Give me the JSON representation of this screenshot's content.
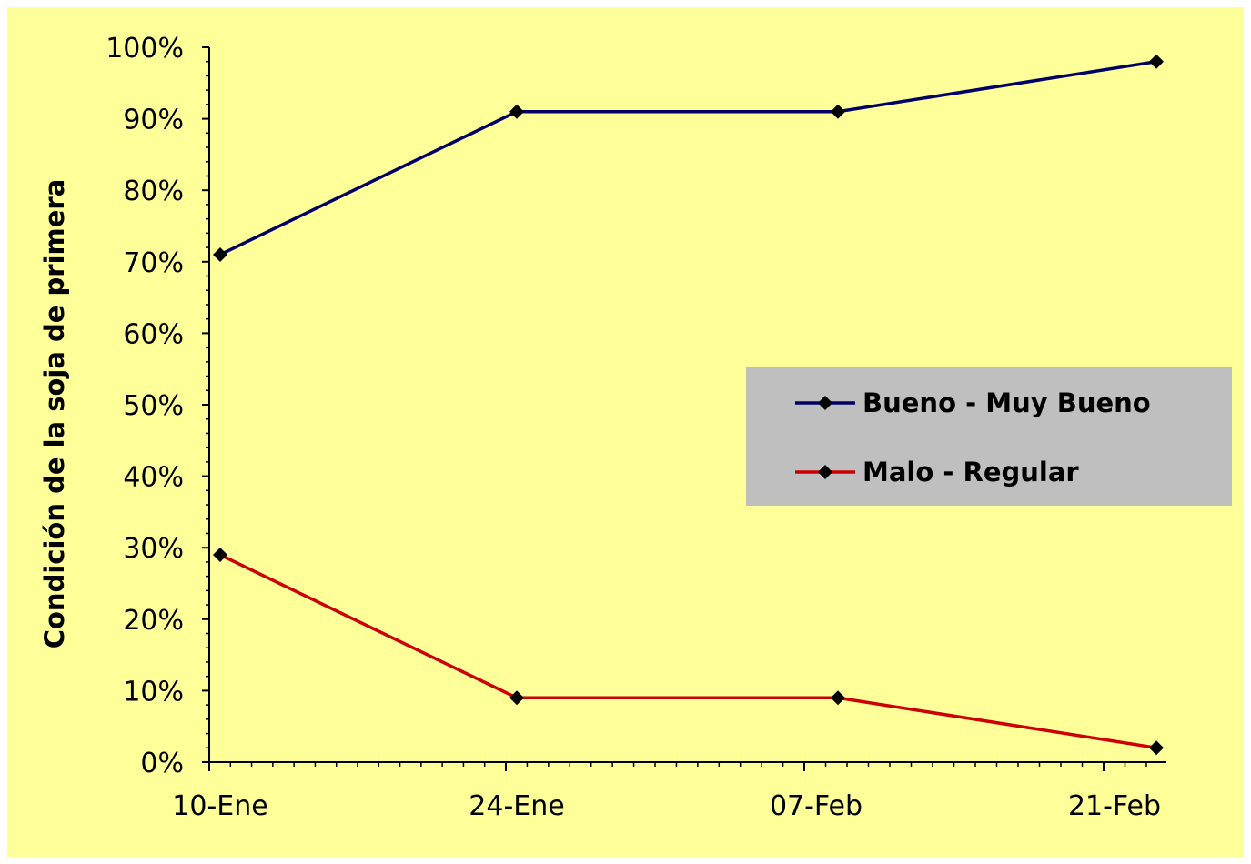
{
  "chart_data": {
    "type": "line",
    "title": "",
    "xlabel": "",
    "ylabel": "Condición de la soja de primera",
    "categories": [
      "10-Ene",
      "24-Ene",
      "07-Feb",
      "21-Feb"
    ],
    "x": [
      "10-Ene",
      "24-Ene",
      "07-Feb",
      "21-Feb"
    ],
    "x_tick_labels": [
      "10-Ene",
      "24-Ene",
      "07-Feb",
      "21-Feb"
    ],
    "y_tick_labels": [
      "0%",
      "10%",
      "20%",
      "30%",
      "40%",
      "50%",
      "60%",
      "70%",
      "80%",
      "90%",
      "100%"
    ],
    "ylim": [
      0,
      100
    ],
    "y_unit": "%",
    "grid": false,
    "legend_position": "right",
    "series": [
      {
        "name": "Bueno - Muy Bueno",
        "color": "#000066",
        "x": [
          "10-Ene",
          "24-Ene",
          "07-Feb",
          "21-Feb"
        ],
        "values": [
          71,
          91,
          91,
          98
        ]
      },
      {
        "name": "Malo - Regular",
        "color": "#cc0000",
        "x": [
          "10-Ene",
          "24-Ene",
          "07-Feb",
          "21-Feb"
        ],
        "values": [
          29,
          9,
          9,
          2
        ]
      }
    ],
    "colors": {
      "plot_background": "#ffff99",
      "legend_background": "#bfbfbf",
      "marker": "#000000"
    }
  }
}
